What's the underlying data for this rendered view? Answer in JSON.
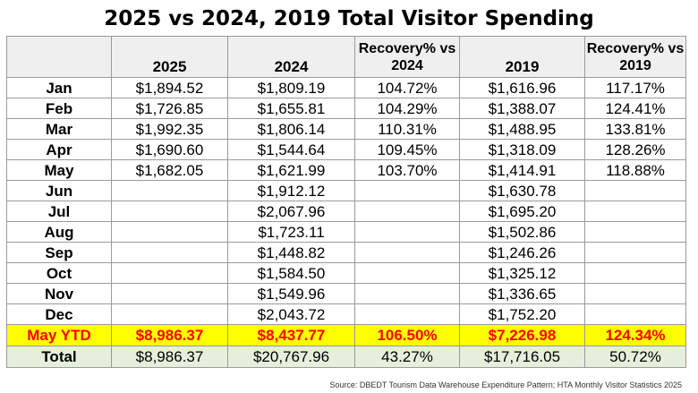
{
  "title": "2025 vs 2024, 2019 Total Visitor Spending",
  "headers": [
    "",
    "2025",
    "2024",
    "Recovery% vs 2024",
    "2019",
    "Recovery% vs 2019"
  ],
  "rows": [
    {
      "month": "Jan",
      "y2025": "$1,894.52",
      "y2024": "$1,809.19",
      "rec2024": "104.72%",
      "y2019": "$1,616.96",
      "rec2019": "117.17%"
    },
    {
      "month": "Feb",
      "y2025": "$1,726.85",
      "y2024": "$1,655.81",
      "rec2024": "104.29%",
      "y2019": "$1,388.07",
      "rec2019": "124.41%"
    },
    {
      "month": "Mar",
      "y2025": "$1,992.35",
      "y2024": "$1,806.14",
      "rec2024": "110.31%",
      "y2019": "$1,488.95",
      "rec2019": "133.81%"
    },
    {
      "month": "Apr",
      "y2025": "$1,690.60",
      "y2024": "$1,544.64",
      "rec2024": "109.45%",
      "y2019": "$1,318.09",
      "rec2019": "128.26%"
    },
    {
      "month": "May",
      "y2025": "$1,682.05",
      "y2024": "$1,621.99",
      "rec2024": "103.70%",
      "y2019": "$1,414.91",
      "rec2019": "118.88%"
    },
    {
      "month": "Jun",
      "y2025": "",
      "y2024": "$1,912.12",
      "rec2024": "",
      "y2019": "$1,630.78",
      "rec2019": ""
    },
    {
      "month": "Jul",
      "y2025": "",
      "y2024": "$2,067.96",
      "rec2024": "",
      "y2019": "$1,695.20",
      "rec2019": ""
    },
    {
      "month": "Aug",
      "y2025": "",
      "y2024": "$1,723.11",
      "rec2024": "",
      "y2019": "$1,502.86",
      "rec2019": ""
    },
    {
      "month": "Sep",
      "y2025": "",
      "y2024": "$1,448.82",
      "rec2024": "",
      "y2019": "$1,246.26",
      "rec2019": ""
    },
    {
      "month": "Oct",
      "y2025": "",
      "y2024": "$1,584.50",
      "rec2024": "",
      "y2019": "$1,325.12",
      "rec2019": ""
    },
    {
      "month": "Nov",
      "y2025": "",
      "y2024": "$1,549.96",
      "rec2024": "",
      "y2019": "$1,336.65",
      "rec2019": ""
    },
    {
      "month": "Dec",
      "y2025": "",
      "y2024": "$2,043.72",
      "rec2024": "",
      "y2019": "$1,752.20",
      "rec2019": ""
    }
  ],
  "ytd": {
    "month": "May YTD",
    "y2025": "$8,986.37",
    "y2024": "$8,437.77",
    "rec2024": "106.50%",
    "y2019": "$7,226.98",
    "rec2019": "124.34%"
  },
  "total": {
    "month": "Total",
    "y2025": "$8,986.37",
    "y2024": "$20,767.96",
    "rec2024": "43.27%",
    "y2019": "$17,716.05",
    "rec2019": "50.72%"
  },
  "source": "Source: DBEDT Tourism Data Warehouse Expenditure Pattern; HTA Monthly Visitor Statistics 2025",
  "colors": {
    "ytd_background": "#ffff00",
    "ytd_text": "#ff0000",
    "total_background": "#e5efdc",
    "header_background": "#efefef"
  }
}
